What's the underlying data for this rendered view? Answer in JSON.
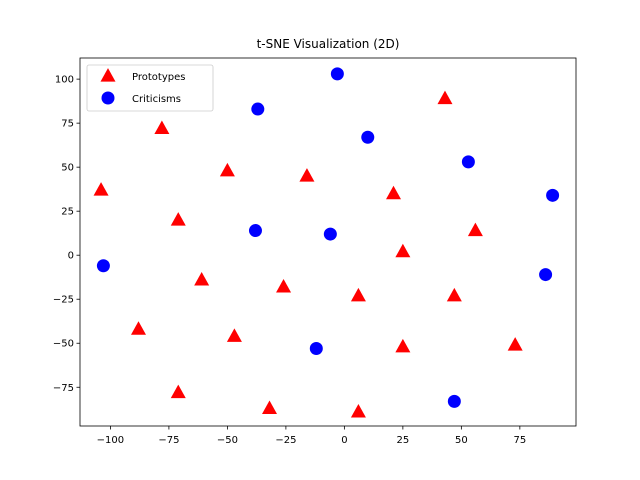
{
  "chart_data": {
    "type": "scatter",
    "title": "t-SNE Visualization (2D)",
    "xlabel": "",
    "ylabel": "",
    "xlim": [
      -113,
      99
    ],
    "ylim": [
      -97,
      112
    ],
    "xticks": [
      -100,
      -75,
      -50,
      -25,
      0,
      25,
      50,
      75
    ],
    "yticks": [
      -75,
      -50,
      -25,
      0,
      25,
      50,
      75,
      100
    ],
    "xtick_labels": [
      "−100",
      "−75",
      "−50",
      "−25",
      "0",
      "25",
      "50",
      "75"
    ],
    "ytick_labels": [
      "−75",
      "−50",
      "−25",
      "0",
      "25",
      "50",
      "75",
      "100"
    ],
    "grid": false,
    "legend": {
      "placement": "upper-left"
    },
    "series": [
      {
        "name": "Prototypes",
        "marker": "triangle",
        "color": "#ff0000",
        "points": [
          [
            -104,
            37
          ],
          [
            -78,
            72
          ],
          [
            -71,
            20
          ],
          [
            -50,
            48
          ],
          [
            -61,
            -14
          ],
          [
            -88,
            -42
          ],
          [
            -47,
            -46
          ],
          [
            -71,
            -78
          ],
          [
            -32,
            -87
          ],
          [
            -26,
            -18
          ],
          [
            -16,
            45
          ],
          [
            6,
            -23
          ],
          [
            6,
            -89
          ],
          [
            21,
            35
          ],
          [
            25,
            2
          ],
          [
            25,
            -52
          ],
          [
            43,
            89
          ],
          [
            47,
            -23
          ],
          [
            56,
            14
          ],
          [
            73,
            -51
          ]
        ]
      },
      {
        "name": "Criticisms",
        "marker": "circle",
        "color": "#0000ff",
        "points": [
          [
            -103,
            -6
          ],
          [
            -37,
            83
          ],
          [
            -38,
            14
          ],
          [
            -3,
            103
          ],
          [
            -6,
            12
          ],
          [
            -12,
            -53
          ],
          [
            10,
            67
          ],
          [
            53,
            53
          ],
          [
            47,
            -83
          ],
          [
            89,
            34
          ],
          [
            86,
            -11
          ]
        ]
      }
    ]
  }
}
